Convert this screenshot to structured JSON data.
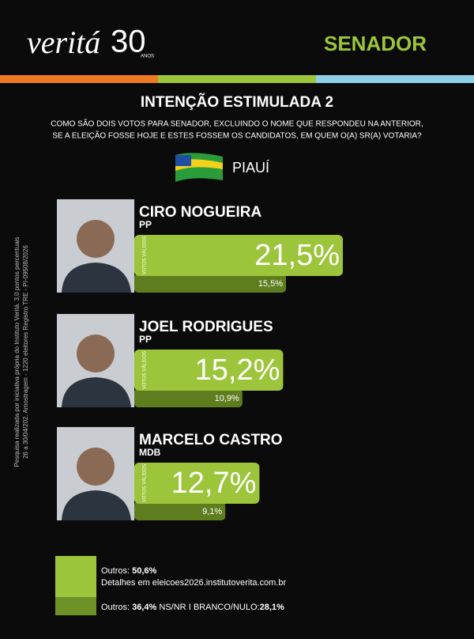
{
  "header": {
    "brand": "veritá",
    "brand_number": "30",
    "brand_sub": "ANOS",
    "office": "SENADOR"
  },
  "chart_data": {
    "type": "bar",
    "title": "INTENÇÃO ESTIMULADA 2",
    "subtitle": [
      "COMO SÃO DOIS VOTOS PARA SENADOR, EXCLUINDO O NOME QUE RESPONDEU NA ANTERIOR,",
      "SE A ELEIÇÃO FOSSE HOJE E ESTES FOSSEM OS CANDIDATOS, EM QUEM O(A) SR(A) VOTARIA?"
    ],
    "region": "PIAUÍ",
    "categories": [
      "CIRO NOGUEIRA",
      "JOEL RODRIGUES",
      "MARCELO CASTRO"
    ],
    "parties": [
      "PP",
      "PP",
      "MDB"
    ],
    "series": [
      {
        "name": "VOTOS VÁLIDOS",
        "color": "#9cc53b",
        "values": [
          21.5,
          15.2,
          12.7
        ],
        "value_labels": [
          "21,5%",
          "15,2%",
          "12,7%"
        ]
      },
      {
        "color": "#5e7d1e",
        "values": [
          15.5,
          10.9,
          9.1
        ],
        "value_labels": [
          "15,5%",
          "10,9%",
          "9,1%"
        ]
      }
    ]
  },
  "footer": {
    "valid_label": "Outros:",
    "valid_value": "50,6%",
    "details": "Detalhes em eleicoes2026.institutoverita.com.br",
    "all_label": "Outros:",
    "all_value": "36,4%",
    "nsnr": "NS/NR",
    "sep": "I",
    "blank_label": "BRANCO/NULO:",
    "blank_value": "28,1%"
  },
  "side_note": [
    "Pesquisa realizada por iniciativa própria do Instituto Veritá. 3,0 pontos percentuais",
    "26 a 30/04/202. Amostragem - 1220 eleitores Registro TRE - PI-09508/2026"
  ]
}
